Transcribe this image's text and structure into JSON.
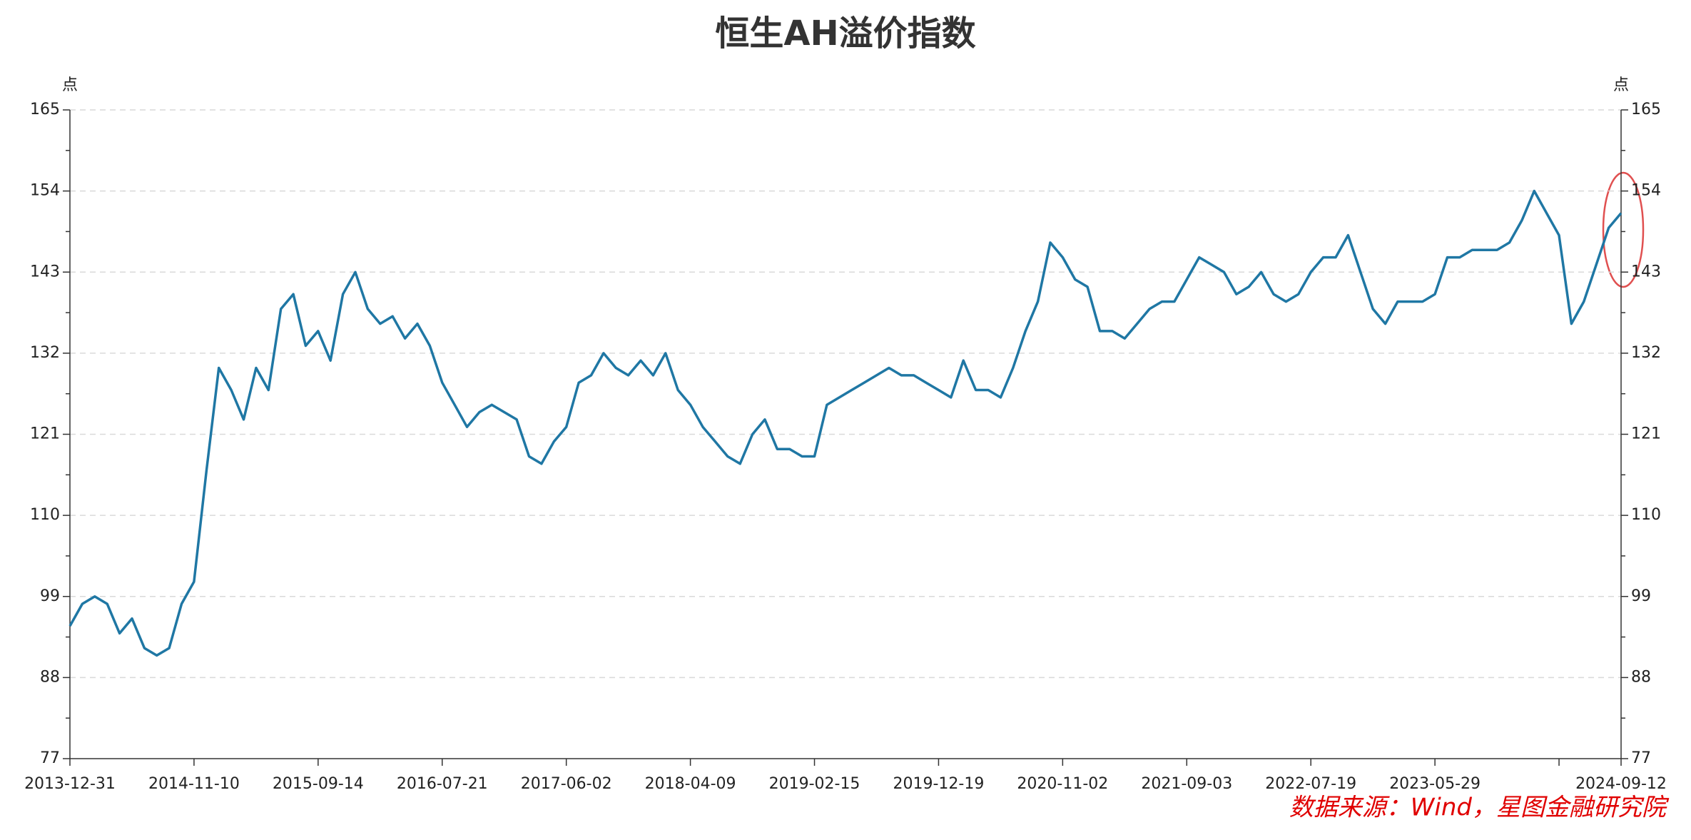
{
  "chart_data": {
    "type": "line",
    "title": "恒生AH溢价指数",
    "y_label": "点",
    "y2_label": "点",
    "source": "数据来源：Wind，星图金融研究院",
    "categories": [
      "2013-12-31",
      null,
      null,
      null,
      null,
      null,
      null,
      null,
      null,
      null,
      "2014-11-10",
      null,
      null,
      null,
      null,
      null,
      null,
      null,
      null,
      null,
      "2015-09-14",
      null,
      null,
      null,
      null,
      null,
      null,
      null,
      null,
      null,
      "2016-07-21",
      null,
      null,
      null,
      null,
      null,
      null,
      null,
      null,
      null,
      "2017-06-02",
      null,
      null,
      null,
      null,
      null,
      null,
      null,
      null,
      null,
      "2018-04-09",
      null,
      null,
      null,
      null,
      null,
      null,
      null,
      null,
      null,
      "2019-02-15",
      null,
      null,
      null,
      null,
      null,
      null,
      null,
      null,
      null,
      "2019-12-19",
      null,
      null,
      null,
      null,
      null,
      null,
      null,
      null,
      null,
      "2020-11-02",
      null,
      null,
      null,
      null,
      null,
      null,
      null,
      null,
      null,
      "2021-09-03",
      null,
      null,
      null,
      null,
      null,
      null,
      null,
      null,
      null,
      "2022-07-19",
      null,
      null,
      null,
      null,
      null,
      null,
      null,
      null,
      null,
      "2023-05-29",
      null,
      null,
      null,
      null,
      null,
      null,
      null,
      null,
      null,
      null,
      null,
      null,
      null,
      null,
      "2024-09-12"
    ],
    "series": [
      {
        "name": "恒生AH溢价指数",
        "color": "#1f77a4",
        "values": [
          95,
          98,
          99,
          98,
          94,
          96,
          92,
          91,
          92,
          98,
          101,
          116,
          130,
          127,
          123,
          130,
          127,
          138,
          140,
          133,
          135,
          131,
          140,
          143,
          138,
          136,
          137,
          134,
          136,
          133,
          128,
          125,
          122,
          124,
          125,
          124,
          123,
          118,
          117,
          120,
          122,
          128,
          129,
          132,
          130,
          129,
          131,
          129,
          132,
          127,
          125,
          122,
          120,
          118,
          117,
          121,
          123,
          119,
          119,
          118,
          118,
          125,
          126,
          127,
          128,
          129,
          130,
          129,
          129,
          128,
          127,
          126,
          131,
          127,
          127,
          126,
          130,
          135,
          139,
          147,
          145,
          142,
          141,
          135,
          135,
          134,
          136,
          138,
          139,
          139,
          142,
          145,
          144,
          143,
          140,
          141,
          143,
          140,
          139,
          140,
          143,
          145,
          145,
          148,
          143,
          138,
          136,
          139,
          139,
          139,
          140,
          145,
          145,
          146,
          146,
          146,
          147,
          150,
          154,
          151,
          148,
          136,
          139,
          144,
          149,
          151
        ]
      }
    ],
    "ylim": [
      77,
      165
    ],
    "yticks": [
      77,
      88,
      99,
      110,
      121,
      132,
      143,
      154,
      165
    ],
    "y2lim": [
      77,
      165
    ],
    "y2ticks": [
      77,
      88,
      99,
      110,
      121,
      132,
      143,
      154,
      165
    ],
    "grid": true
  }
}
